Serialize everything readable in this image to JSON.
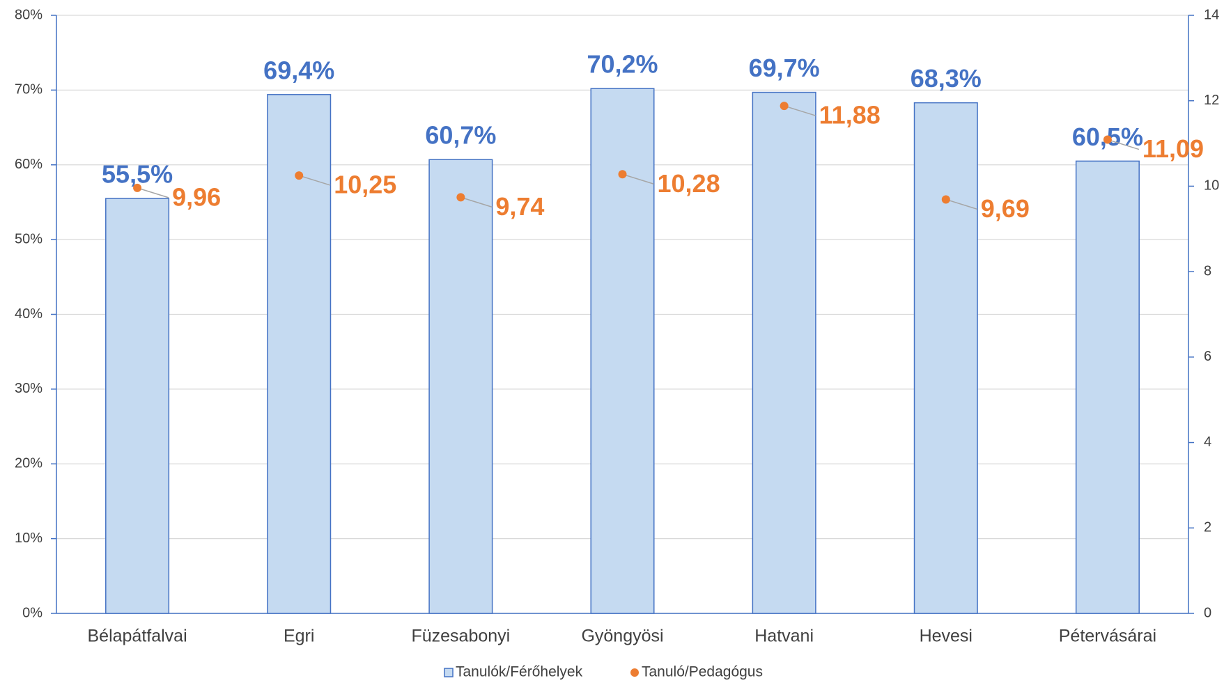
{
  "chart_data": {
    "type": "bar",
    "categories": [
      "Bélapátfalvai",
      "Egri",
      "Füzesabonyi",
      "Gyöngyösi",
      "Hatvani",
      "Hevesi",
      "Pétervásárai"
    ],
    "series": [
      {
        "name": "Tanulók/Férőhelyek",
        "type": "bar",
        "color": "#c5daf1",
        "edge_color": "#4472c4",
        "values": [
          55.5,
          69.4,
          60.7,
          70.2,
          69.7,
          68.3,
          60.5
        ],
        "value_labels": [
          "55,5%",
          "69,4%",
          "60,7%",
          "70,2%",
          "69,7%",
          "68,3%",
          "60,5%"
        ]
      },
      {
        "name": "Tanuló/Pedagógus",
        "type": "scatter",
        "axis": "y2",
        "color": "#ed7d31",
        "values": [
          9.96,
          10.25,
          9.74,
          10.28,
          11.88,
          9.69,
          11.09
        ],
        "value_labels": [
          "9,96",
          "10,25",
          "9,74",
          "10,28",
          "11,88",
          "9,69",
          "11,09"
        ]
      }
    ],
    "ylim": [
      0,
      80
    ],
    "yticks": [
      {
        "value": 0,
        "label": "0%"
      },
      {
        "value": 10,
        "label": "10%"
      },
      {
        "value": 20,
        "label": "20%"
      },
      {
        "value": 30,
        "label": "30%"
      },
      {
        "value": 40,
        "label": "40%"
      },
      {
        "value": 50,
        "label": "50%"
      },
      {
        "value": 60,
        "label": "60%"
      },
      {
        "value": 70,
        "label": "70%"
      },
      {
        "value": 80,
        "label": "80%"
      }
    ],
    "y2lim": [
      0,
      14
    ],
    "y2ticks": [
      0,
      2,
      4,
      6,
      8,
      10,
      12,
      14
    ],
    "grid": true,
    "legend": "bottom"
  }
}
